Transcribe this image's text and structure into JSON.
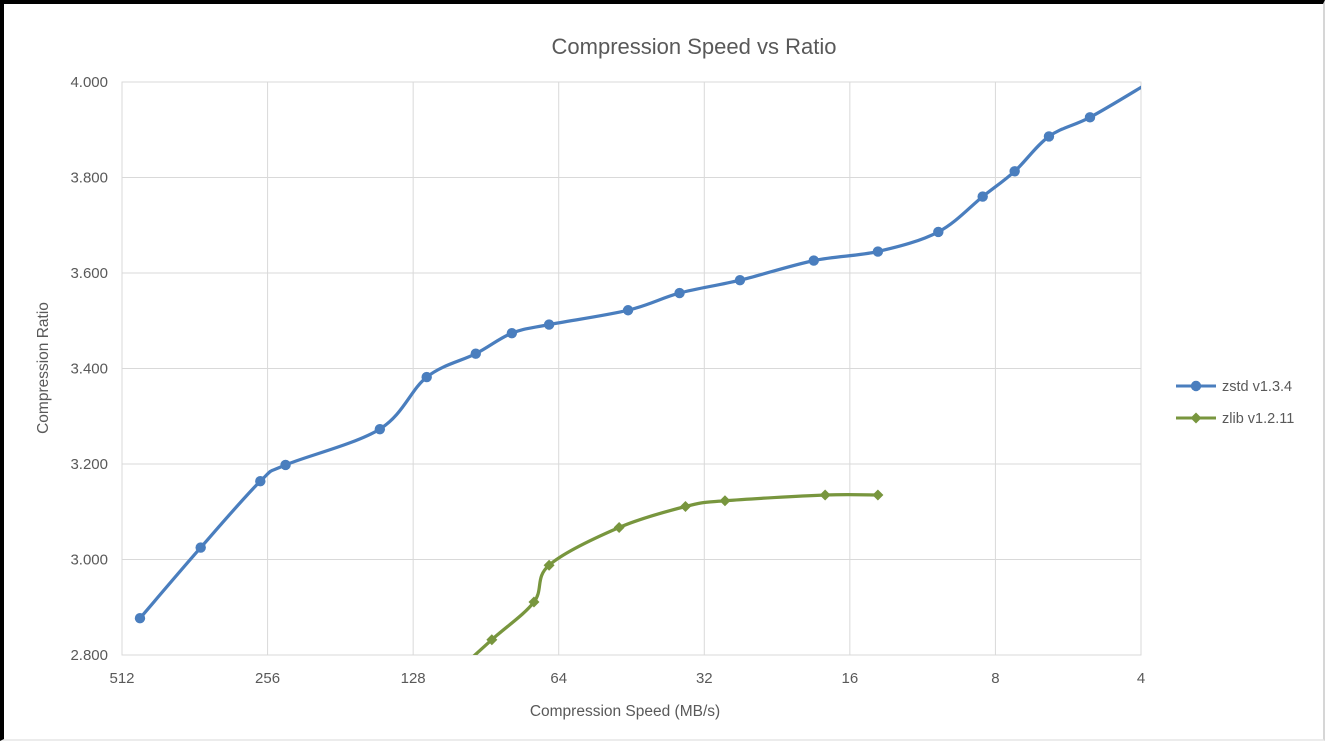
{
  "chart_data": {
    "type": "line",
    "title": "Compression Speed vs Ratio",
    "xlabel": "Compression Speed (MB/s)",
    "ylabel": "Compression Ratio",
    "x_scale": "log2_reversed",
    "x_min": 4,
    "x_max": 512,
    "x_ticks": [
      512,
      256,
      128,
      64,
      32,
      16,
      8,
      4
    ],
    "y_min": 2.8,
    "y_max": 4.0,
    "y_tick_step": 0.2,
    "y_tick_decimals": 3,
    "grid": true,
    "legend_position": "right",
    "colors": {
      "grid": "#D9D9D9",
      "text": "#595959",
      "background": "#FFFFFF"
    },
    "series": [
      {
        "name": "zstd v1.3.4",
        "color": "#4A7EBE",
        "marker": "circle",
        "points": [
          [
            470,
            2.877
          ],
          [
            352,
            3.025
          ],
          [
            265,
            3.164
          ],
          [
            235,
            3.198
          ],
          [
            150,
            3.273
          ],
          [
            120,
            3.382
          ],
          [
            95,
            3.431
          ],
          [
            80,
            3.474
          ],
          [
            67,
            3.492
          ],
          [
            46,
            3.522
          ],
          [
            36,
            3.558
          ],
          [
            27,
            3.585
          ],
          [
            19,
            3.626
          ],
          [
            14,
            3.645
          ],
          [
            10.5,
            3.686
          ],
          [
            8.5,
            3.76
          ],
          [
            7.3,
            3.813
          ],
          [
            6.2,
            3.886
          ],
          [
            5.1,
            3.926
          ],
          [
            3.95,
            3.992
          ]
        ]
      },
      {
        "name": "zlib v1.2.11",
        "color": "#78963E",
        "marker": "diamond",
        "points": [
          [
            110,
            2.743
          ],
          [
            88,
            2.832
          ],
          [
            72,
            2.911
          ],
          [
            67,
            2.988
          ],
          [
            48,
            3.067
          ],
          [
            35,
            3.111
          ],
          [
            29,
            3.123
          ],
          [
            18,
            3.135
          ],
          [
            14,
            3.135
          ]
        ]
      }
    ]
  }
}
